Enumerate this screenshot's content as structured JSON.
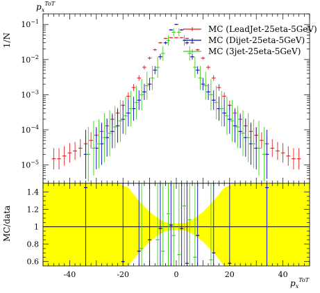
{
  "chart_data": [
    {
      "type": "scatter",
      "panel": "main",
      "title": "p_x^{ToT}",
      "title_main": "p",
      "title_sub": "x",
      "title_sup": "ToT",
      "ylabel": "1/N",
      "yscale": "log",
      "ylim": [
        3e-06,
        0.2
      ],
      "xlim": [
        -50,
        50
      ],
      "yticks": [
        {
          "value": 0.1,
          "base": "10",
          "exp": "−1"
        },
        {
          "value": 0.01,
          "base": "10",
          "exp": "−2"
        },
        {
          "value": 0.001,
          "base": "10",
          "exp": "−3"
        },
        {
          "value": 0.0001,
          "base": "10",
          "exp": "−4"
        },
        {
          "value": 1e-05,
          "base": "10",
          "exp": "−5"
        }
      ],
      "legend_position": "top-right",
      "series": [
        {
          "name": "MC (LeadJet-25eta-5GeV)",
          "color": "#e41a1c",
          "x": [
            -46,
            -44,
            -42,
            -40,
            -38,
            -36,
            -34,
            -32,
            -30,
            -28,
            -26,
            -24,
            -22,
            -20,
            -18,
            -16,
            -14,
            -12,
            -10,
            -8,
            -6,
            -4,
            -2,
            0,
            2,
            4,
            6,
            8,
            10,
            12,
            14,
            16,
            18,
            20,
            22,
            24,
            26,
            28,
            30,
            32,
            34,
            36,
            38,
            40,
            42,
            44,
            46
          ],
          "y": [
            1.5e-05,
            1.5e-05,
            1.8e-05,
            2.2e-05,
            2.5e-05,
            3e-05,
            4e-05,
            5e-05,
            7e-05,
            9e-05,
            0.00013,
            0.0002,
            0.0003,
            0.0005,
            0.0009,
            0.0016,
            0.003,
            0.006,
            0.011,
            0.019,
            0.03,
            0.04,
            0.042,
            0.042,
            0.042,
            0.04,
            0.03,
            0.019,
            0.011,
            0.006,
            0.003,
            0.0016,
            0.0009,
            0.0005,
            0.0003,
            0.0002,
            0.00013,
            9e-05,
            7e-05,
            5e-05,
            4e-05,
            3e-05,
            2.5e-05,
            2.2e-05,
            1.8e-05,
            1.5e-05,
            1.5e-05
          ],
          "err_factor": [
            2.0,
            2.0,
            1.9,
            1.9,
            1.8,
            1.8,
            1.7,
            1.7,
            1.6,
            1.6,
            1.5,
            1.5,
            1.4,
            1.35,
            1.3,
            1.25,
            1.2,
            1.15,
            1.1,
            1.08,
            1.06,
            1.05,
            1.04,
            1.04,
            1.04,
            1.05,
            1.06,
            1.08,
            1.1,
            1.15,
            1.2,
            1.25,
            1.3,
            1.35,
            1.4,
            1.5,
            1.5,
            1.6,
            1.6,
            1.7,
            1.7,
            1.8,
            1.8,
            1.9,
            1.9,
            2.0,
            2.0
          ]
        },
        {
          "name": "MC (Dijet-25eta-5GeV)",
          "color": "#0000cc",
          "x": [
            -34,
            -30,
            -28,
            -26,
            -24,
            -22,
            -20,
            -18,
            -16,
            -14,
            -12,
            -10,
            -8,
            -6,
            -4,
            -2,
            0,
            2,
            4,
            6,
            8,
            10,
            12,
            14,
            16,
            18,
            20,
            22,
            24,
            26,
            28,
            30,
            34
          ],
          "y": [
            2e-05,
            3e-05,
            4e-05,
            6e-05,
            9e-05,
            0.00013,
            0.0002,
            0.0003,
            0.0004,
            0.0007,
            0.0012,
            0.002,
            0.005,
            0.012,
            0.03,
            0.07,
            0.1,
            0.07,
            0.03,
            0.012,
            0.005,
            0.002,
            0.0012,
            0.0007,
            0.0004,
            0.0003,
            0.0002,
            0.00013,
            9e-05,
            6e-05,
            4e-05,
            3e-05,
            2e-05
          ],
          "err_factor": [
            5,
            4,
            4,
            3.5,
            3,
            3,
            2.6,
            2.4,
            2.2,
            1.9,
            1.7,
            1.5,
            1.3,
            1.2,
            1.1,
            1.05,
            1.04,
            1.05,
            1.1,
            1.2,
            1.3,
            1.5,
            1.7,
            1.9,
            2.2,
            2.4,
            2.6,
            3,
            3,
            3.5,
            4,
            4,
            5
          ]
        },
        {
          "name": "MC (3jet-25eta-5GeV)",
          "color": "#3dcc1d",
          "x": [
            -33,
            -31,
            -29,
            -27,
            -25,
            -23,
            -21,
            -19,
            -17,
            -15,
            -13,
            -11,
            -9,
            -7,
            -5,
            -3,
            -1,
            1,
            3,
            5,
            7,
            9,
            11,
            13,
            15,
            17,
            19,
            21,
            23,
            25,
            27,
            29,
            31,
            33
          ],
          "y": [
            2e-05,
            3e-05,
            4e-05,
            6e-05,
            8e-05,
            0.00012,
            0.00018,
            0.00025,
            0.0004,
            0.0006,
            0.001,
            0.0018,
            0.003,
            0.006,
            0.015,
            0.035,
            0.06,
            0.06,
            0.035,
            0.015,
            0.006,
            0.003,
            0.0018,
            0.001,
            0.0006,
            0.0004,
            0.00025,
            0.00018,
            0.00012,
            8e-05,
            6e-05,
            4e-05,
            3e-05,
            2e-05
          ],
          "err_factor": [
            6,
            6,
            5,
            5,
            4.5,
            4,
            4,
            3.5,
            3.2,
            3,
            2.8,
            2.5,
            2.2,
            2.0,
            1.6,
            1.4,
            1.3,
            1.3,
            1.4,
            1.6,
            2.0,
            2.2,
            2.5,
            2.8,
            3,
            3.2,
            3.5,
            4,
            4,
            4.5,
            5,
            5,
            6,
            6
          ]
        }
      ]
    },
    {
      "type": "scatter",
      "panel": "ratio",
      "ylabel": "MC/data",
      "xlabel": "p_x^{ToT}",
      "xlabel_main": "p",
      "xlabel_sub": "x",
      "xlabel_sup": "ToT",
      "xlim": [
        -50,
        50
      ],
      "ylim": [
        0.55,
        1.5
      ],
      "xticks": [
        -40,
        -20,
        0,
        20,
        40
      ],
      "yticks": [
        0.6,
        0.8,
        1,
        1.2,
        1.4
      ],
      "band_color": "#ffff00",
      "band": {
        "x": [
          -50,
          -46,
          -42,
          -38,
          -34,
          -30,
          -26,
          -22,
          -18,
          -14,
          -10,
          -6,
          -4,
          -2,
          0,
          2,
          4,
          6,
          10,
          14,
          18,
          22,
          26,
          30,
          34,
          38,
          42,
          46,
          50
        ],
        "half_width": [
          0.95,
          0.95,
          0.95,
          0.95,
          0.95,
          0.9,
          0.75,
          0.6,
          0.45,
          0.3,
          0.17,
          0.08,
          0.05,
          0.04,
          0.04,
          0.04,
          0.05,
          0.08,
          0.17,
          0.3,
          0.45,
          0.6,
          0.75,
          0.9,
          0.95,
          0.95,
          0.95,
          0.95,
          0.95
        ]
      },
      "series": [
        {
          "name": "MC (Dijet-25eta-5GeV)",
          "color": "#0000cc",
          "x": [
            -34,
            -20,
            -14,
            -10,
            -6,
            -2,
            2,
            4,
            8,
            14,
            20,
            34
          ],
          "y": [
            1.45,
            0.6,
            0.72,
            0.85,
            0.98,
            1.02,
            0.98,
            0.58,
            0.9,
            0.7,
            0.58,
            1.45
          ]
        },
        {
          "name": "MC (3jet-25eta-5GeV)",
          "color": "#3dcc1d",
          "x": [
            -13,
            -7,
            -5,
            -3,
            -1,
            1,
            3,
            5,
            7,
            13
          ],
          "y": [
            0.75,
            0.85,
            0.72,
            1.15,
            0.9,
            0.68,
            1.24,
            1.08,
            0.65,
            0.62
          ]
        }
      ]
    }
  ]
}
